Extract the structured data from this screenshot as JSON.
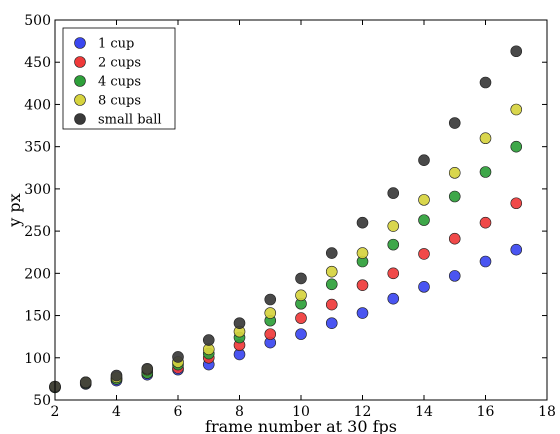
{
  "chart_data": {
    "type": "scatter",
    "xlabel": "frame number at 30 fps",
    "ylabel": "y  px",
    "xlim": [
      2,
      18
    ],
    "ylim": [
      50,
      500
    ],
    "xticks": [
      "2",
      "4",
      "6",
      "8",
      "10",
      "12",
      "14",
      "16",
      "18"
    ],
    "yticks": [
      "50",
      "100",
      "150",
      "200",
      "250",
      "300",
      "350",
      "400",
      "450",
      "500"
    ],
    "grid": false,
    "legend_position": "top-left",
    "x": [
      2,
      3,
      4,
      5,
      6,
      7,
      8,
      9,
      10,
      11,
      12,
      13,
      14,
      15,
      16,
      17
    ],
    "series": [
      {
        "name": "1 cup",
        "color": "#3b47f0",
        "values": [
          65,
          69,
          73,
          80,
          86,
          92,
          104,
          118,
          128,
          141,
          153,
          170,
          184,
          197,
          214,
          228
        ]
      },
      {
        "name": "2 cups",
        "color": "#ef3a3a",
        "values": [
          65,
          70,
          75,
          82,
          88,
          100,
          115,
          128,
          147,
          163,
          186,
          200,
          223,
          241,
          260,
          283
        ]
      },
      {
        "name": "4 cups",
        "color": "#2ea03a",
        "values": [
          65,
          70,
          75,
          82,
          92,
          105,
          124,
          144,
          164,
          187,
          214,
          234,
          263,
          291,
          320,
          350
        ]
      },
      {
        "name": "8 cups",
        "color": "#d6d33e",
        "values": [
          66,
          71,
          77,
          86,
          95,
          110,
          131,
          153,
          174,
          202,
          224,
          256,
          287,
          319,
          360,
          394
        ]
      },
      {
        "name": "small ball",
        "color": "#3a3a3a",
        "values": [
          66,
          71,
          79,
          87,
          101,
          121,
          141,
          169,
          194,
          224,
          260,
          295,
          334,
          378,
          426,
          463
        ]
      }
    ]
  }
}
